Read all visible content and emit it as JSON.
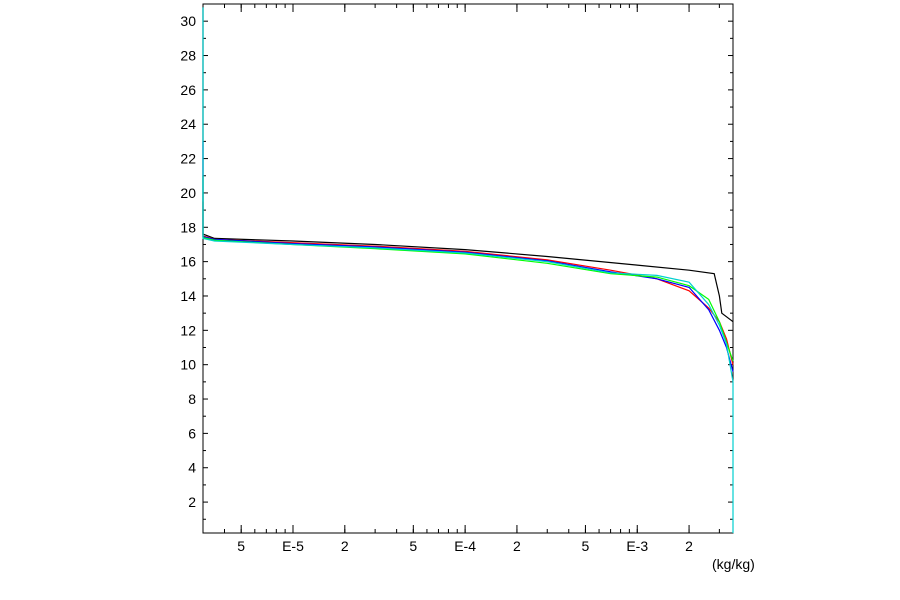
{
  "chart_data": {
    "type": "line",
    "x_scale": "log",
    "xlim": [
      3e-06,
      0.0036
    ],
    "ylim": [
      0.2,
      31
    ],
    "y_ticks": [
      2,
      4,
      6,
      8,
      10,
      12,
      14,
      16,
      18,
      20,
      22,
      24,
      26,
      28,
      30
    ],
    "y_tick_labels": [
      "2",
      "4",
      "6",
      "8",
      "10",
      "12",
      "14",
      "16",
      "18",
      "20",
      "22",
      "24",
      "26",
      "28",
      "30"
    ],
    "x_ticks": [
      5e-06,
      1e-05,
      2e-05,
      5e-05,
      0.0001,
      0.0002,
      0.0005,
      0.001,
      0.002
    ],
    "x_tick_labels": [
      "5",
      "E-5",
      "2",
      "5",
      "E-4",
      "2",
      "5",
      "E-3",
      "2"
    ],
    "x_unit_label": "(kg/kg)",
    "grid": false,
    "series": [
      {
        "color": "#000000",
        "points": [
          [
            3e-06,
            30.8
          ],
          [
            3e-06,
            17.6
          ],
          [
            3.5e-06,
            17.35
          ],
          [
            1e-05,
            17.2
          ],
          [
            3e-05,
            17.0
          ],
          [
            0.0001,
            16.7
          ],
          [
            0.0003,
            16.3
          ],
          [
            0.001,
            15.8
          ],
          [
            0.002,
            15.5
          ],
          [
            0.0028,
            15.3
          ],
          [
            0.003,
            14.0
          ],
          [
            0.0031,
            13.0
          ],
          [
            0.0036,
            12.5
          ]
        ]
      },
      {
        "color": "#ff0000",
        "points": [
          [
            3e-06,
            19.5
          ],
          [
            3e-06,
            17.5
          ],
          [
            3.5e-06,
            17.3
          ],
          [
            1e-05,
            17.1
          ],
          [
            3e-05,
            16.9
          ],
          [
            0.0001,
            16.6
          ],
          [
            0.0003,
            16.1
          ],
          [
            0.0007,
            15.5
          ],
          [
            0.0013,
            15.0
          ],
          [
            0.002,
            14.3
          ],
          [
            0.0026,
            13.3
          ],
          [
            0.003,
            12.5
          ],
          [
            0.0033,
            11.5
          ],
          [
            0.0036,
            10.0
          ]
        ]
      },
      {
        "color": "#0000ff",
        "points": [
          [
            3e-06,
            23.0
          ],
          [
            3e-06,
            17.45
          ],
          [
            3.5e-06,
            17.3
          ],
          [
            1e-05,
            17.05
          ],
          [
            3e-05,
            16.85
          ],
          [
            0.0001,
            16.55
          ],
          [
            0.0003,
            16.05
          ],
          [
            0.0007,
            15.4
          ],
          [
            0.0013,
            15.0
          ],
          [
            0.002,
            14.5
          ],
          [
            0.0026,
            13.2
          ],
          [
            0.003,
            12.0
          ],
          [
            0.0033,
            11.0
          ],
          [
            0.0036,
            9.6
          ]
        ]
      },
      {
        "color": "#00ff00",
        "points": [
          [
            3e-06,
            21.0
          ],
          [
            3e-06,
            17.4
          ],
          [
            3.5e-06,
            17.25
          ],
          [
            1e-05,
            17.0
          ],
          [
            3e-05,
            16.75
          ],
          [
            0.0001,
            16.45
          ],
          [
            0.0003,
            15.9
          ],
          [
            0.0007,
            15.3
          ],
          [
            0.0013,
            15.1
          ],
          [
            0.002,
            14.6
          ],
          [
            0.0026,
            13.8
          ],
          [
            0.003,
            12.5
          ],
          [
            0.0033,
            11.3
          ],
          [
            0.0036,
            10.2
          ]
        ]
      },
      {
        "color": "#00cfcf",
        "points": [
          [
            3e-06,
            30.8
          ],
          [
            3e-06,
            17.35
          ],
          [
            3.5e-06,
            17.2
          ],
          [
            1e-05,
            17.0
          ],
          [
            3e-05,
            16.8
          ],
          [
            0.0001,
            16.5
          ],
          [
            0.0003,
            16.0
          ],
          [
            0.0007,
            15.35
          ],
          [
            0.0013,
            15.2
          ],
          [
            0.002,
            14.8
          ],
          [
            0.0026,
            13.5
          ],
          [
            0.003,
            12.3
          ],
          [
            0.0033,
            11.2
          ],
          [
            0.0036,
            9.0
          ],
          [
            0.0036,
            0.2
          ]
        ]
      }
    ]
  }
}
